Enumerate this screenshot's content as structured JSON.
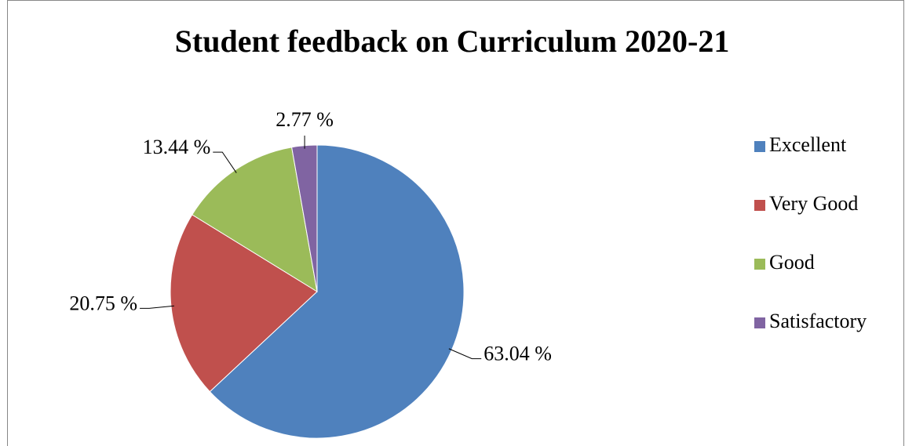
{
  "chart_data": {
    "type": "pie",
    "title": "Student feedback on Curriculum 2020-21",
    "categories": [
      "Excellent",
      "Very Good",
      "Good",
      "Satisfactory"
    ],
    "values": [
      63.04,
      20.75,
      13.44,
      2.77
    ],
    "value_labels": [
      "63.04 %",
      "20.75 %",
      "13.44 %",
      "2.77 %"
    ],
    "colors": [
      "#4f81bd",
      "#c0504d",
      "#9bbb59",
      "#8064a2"
    ],
    "legend": "right"
  }
}
